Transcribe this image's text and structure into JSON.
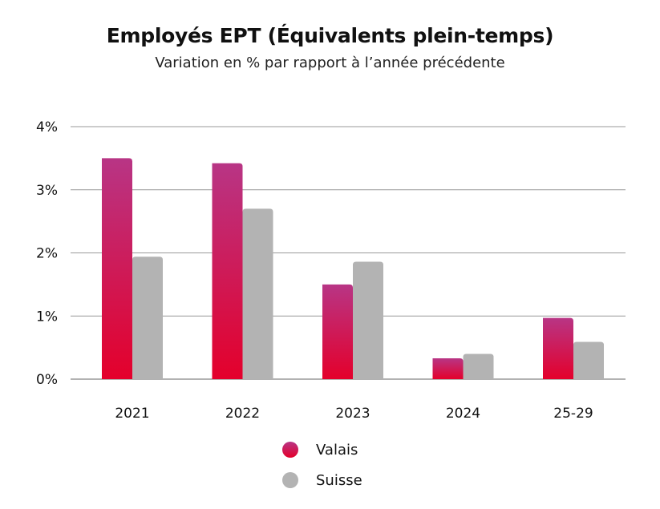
{
  "chart_data": {
    "type": "bar",
    "title": "Employés EPT (Équivalents plein-temps)",
    "subtitle": "Variation en % par rapport à l’année précédente",
    "categories": [
      "2021",
      "2022",
      "2023",
      "2024",
      "25-29"
    ],
    "series": [
      {
        "name": "Valais",
        "values": [
          3.5,
          3.42,
          1.5,
          0.33,
          0.97
        ],
        "color_top": "#b83585",
        "color_bottom": "#e4002b"
      },
      {
        "name": "Suisse",
        "values": [
          1.94,
          2.7,
          1.86,
          0.4,
          0.59
        ],
        "color": "#b3b3b3"
      }
    ],
    "ylim": [
      0,
      4
    ],
    "yticks": [
      "0%",
      "1%",
      "2%",
      "3%",
      "4%"
    ],
    "grid": true,
    "gridline_color": "#999999",
    "legend_position": "bottom-center",
    "xlabel": "",
    "ylabel": ""
  }
}
